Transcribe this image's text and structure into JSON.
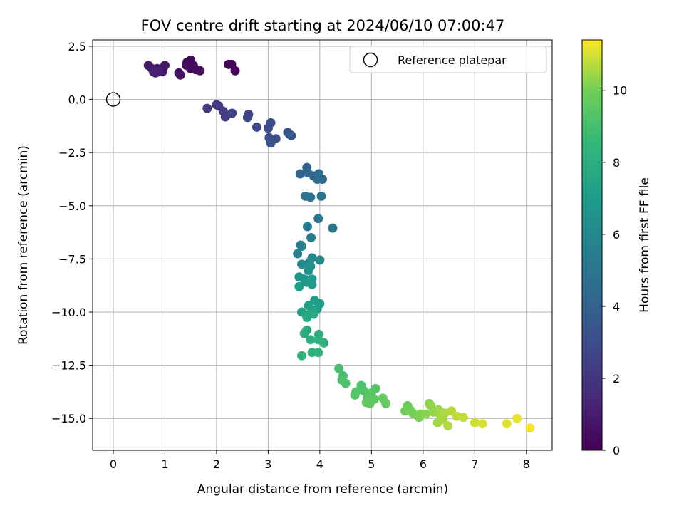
{
  "chart_data": {
    "type": "scatter",
    "title": "FOV centre drift starting at 2024/06/10 07:00:47",
    "xlabel": "Angular distance from reference (arcmin)",
    "ylabel": "Rotation from reference (arcmin)",
    "xlim": [
      -0.4,
      8.5
    ],
    "ylim": [
      -16.5,
      2.8
    ],
    "xticks": [
      0,
      1,
      2,
      3,
      4,
      5,
      6,
      7,
      8
    ],
    "yticks": [
      2.5,
      0.0,
      -2.5,
      -5.0,
      -7.5,
      -10.0,
      -12.5,
      -15.0
    ],
    "grid": true,
    "colormap": "viridis",
    "colorbar": {
      "label": "Hours from first FF file",
      "range": [
        0,
        11.4
      ],
      "ticks": [
        0,
        2,
        4,
        6,
        8,
        10
      ]
    },
    "legend": {
      "position": "top-right",
      "entries": [
        {
          "label": "Reference platepar",
          "marker": "open-circle"
        }
      ]
    },
    "reference_point": {
      "x": 0,
      "y": 0
    },
    "points": [
      {
        "x": 2.23,
        "y": 1.65,
        "t": 0.05
      },
      {
        "x": 2.29,
        "y": 1.65,
        "t": 0.1
      },
      {
        "x": 2.36,
        "y": 1.35,
        "t": 0.15
      },
      {
        "x": 1.5,
        "y": 1.85,
        "t": 0.25
      },
      {
        "x": 1.43,
        "y": 1.75,
        "t": 0.3
      },
      {
        "x": 1.55,
        "y": 1.6,
        "t": 0.35
      },
      {
        "x": 1.6,
        "y": 1.4,
        "t": 0.4
      },
      {
        "x": 1.5,
        "y": 1.45,
        "t": 0.45
      },
      {
        "x": 1.42,
        "y": 1.6,
        "t": 0.5
      },
      {
        "x": 1.68,
        "y": 1.35,
        "t": 0.55
      },
      {
        "x": 1.27,
        "y": 1.25,
        "t": 0.6
      },
      {
        "x": 1.3,
        "y": 1.15,
        "t": 0.65
      },
      {
        "x": 1.0,
        "y": 1.6,
        "t": 0.7
      },
      {
        "x": 0.97,
        "y": 1.5,
        "t": 0.75
      },
      {
        "x": 0.95,
        "y": 1.3,
        "t": 0.8
      },
      {
        "x": 0.85,
        "y": 1.45,
        "t": 0.85
      },
      {
        "x": 0.75,
        "y": 1.45,
        "t": 0.9
      },
      {
        "x": 0.68,
        "y": 1.6,
        "t": 0.95
      },
      {
        "x": 0.82,
        "y": 1.25,
        "t": 1.0
      },
      {
        "x": 0.88,
        "y": 1.3,
        "t": 1.1
      },
      {
        "x": 0.78,
        "y": 1.3,
        "t": 1.2
      },
      {
        "x": 1.82,
        "y": -0.42,
        "t": 2.0
      },
      {
        "x": 2.0,
        "y": -0.25,
        "t": 2.1
      },
      {
        "x": 2.04,
        "y": -0.3,
        "t": 2.2
      },
      {
        "x": 2.13,
        "y": -0.55,
        "t": 2.3
      },
      {
        "x": 2.17,
        "y": -0.82,
        "t": 2.4
      },
      {
        "x": 2.3,
        "y": -0.65,
        "t": 2.5
      },
      {
        "x": 2.62,
        "y": -0.7,
        "t": 2.6
      },
      {
        "x": 2.6,
        "y": -0.85,
        "t": 2.7
      },
      {
        "x": 2.78,
        "y": -1.3,
        "t": 2.8
      },
      {
        "x": 3.0,
        "y": -1.35,
        "t": 2.9
      },
      {
        "x": 3.05,
        "y": -1.1,
        "t": 3.0
      },
      {
        "x": 3.02,
        "y": -1.8,
        "t": 3.1
      },
      {
        "x": 3.15,
        "y": -1.85,
        "t": 3.2
      },
      {
        "x": 3.05,
        "y": -2.05,
        "t": 3.3
      },
      {
        "x": 3.38,
        "y": -1.55,
        "t": 3.4
      },
      {
        "x": 3.42,
        "y": -1.65,
        "t": 3.5
      },
      {
        "x": 3.45,
        "y": -1.7,
        "t": 3.55
      },
      {
        "x": 3.75,
        "y": -3.2,
        "t": 4.0
      },
      {
        "x": 3.62,
        "y": -3.5,
        "t": 4.1
      },
      {
        "x": 3.77,
        "y": -3.45,
        "t": 4.2
      },
      {
        "x": 3.88,
        "y": -3.6,
        "t": 4.3
      },
      {
        "x": 3.95,
        "y": -3.75,
        "t": 4.4
      },
      {
        "x": 4.05,
        "y": -3.75,
        "t": 4.5
      },
      {
        "x": 3.98,
        "y": -3.5,
        "t": 4.6
      },
      {
        "x": 3.72,
        "y": -4.55,
        "t": 4.7
      },
      {
        "x": 3.82,
        "y": -4.6,
        "t": 4.8
      },
      {
        "x": 4.03,
        "y": -4.55,
        "t": 4.9
      },
      {
        "x": 3.97,
        "y": -5.6,
        "t": 5.0
      },
      {
        "x": 4.25,
        "y": -6.05,
        "t": 5.1
      },
      {
        "x": 3.76,
        "y": -5.98,
        "t": 5.2
      },
      {
        "x": 3.83,
        "y": -6.5,
        "t": 5.3
      },
      {
        "x": 3.65,
        "y": -6.9,
        "t": 5.4
      },
      {
        "x": 3.63,
        "y": -6.85,
        "t": 5.5
      },
      {
        "x": 3.57,
        "y": -7.25,
        "t": 5.6
      },
      {
        "x": 3.85,
        "y": -7.45,
        "t": 6.0
      },
      {
        "x": 4.0,
        "y": -7.55,
        "t": 6.1
      },
      {
        "x": 3.65,
        "y": -7.75,
        "t": 6.2
      },
      {
        "x": 3.8,
        "y": -7.65,
        "t": 6.3
      },
      {
        "x": 3.78,
        "y": -8.05,
        "t": 6.4
      },
      {
        "x": 3.82,
        "y": -7.85,
        "t": 6.5
      },
      {
        "x": 3.6,
        "y": -8.35,
        "t": 6.6
      },
      {
        "x": 3.7,
        "y": -8.45,
        "t": 6.7
      },
      {
        "x": 3.75,
        "y": -8.6,
        "t": 6.8
      },
      {
        "x": 3.85,
        "y": -8.45,
        "t": 6.9
      },
      {
        "x": 3.85,
        "y": -8.7,
        "t": 7.0
      },
      {
        "x": 3.6,
        "y": -8.8,
        "t": 7.05
      },
      {
        "x": 3.9,
        "y": -9.45,
        "t": 7.1
      },
      {
        "x": 4.0,
        "y": -9.6,
        "t": 7.15
      },
      {
        "x": 3.95,
        "y": -9.85,
        "t": 7.2
      },
      {
        "x": 3.78,
        "y": -9.7,
        "t": 7.3
      },
      {
        "x": 3.85,
        "y": -9.9,
        "t": 7.4
      },
      {
        "x": 3.65,
        "y": -10.0,
        "t": 7.5
      },
      {
        "x": 3.8,
        "y": -10.1,
        "t": 7.6
      },
      {
        "x": 3.75,
        "y": -10.25,
        "t": 7.7
      },
      {
        "x": 3.88,
        "y": -10.1,
        "t": 7.8
      },
      {
        "x": 3.75,
        "y": -10.85,
        "t": 7.9
      },
      {
        "x": 3.7,
        "y": -11.0,
        "t": 8.0
      },
      {
        "x": 3.98,
        "y": -11.05,
        "t": 8.05
      },
      {
        "x": 3.82,
        "y": -11.3,
        "t": 8.1
      },
      {
        "x": 3.97,
        "y": -11.3,
        "t": 8.15
      },
      {
        "x": 4.08,
        "y": -11.45,
        "t": 8.2
      },
      {
        "x": 3.85,
        "y": -11.9,
        "t": 8.25
      },
      {
        "x": 3.97,
        "y": -11.9,
        "t": 8.3
      },
      {
        "x": 3.65,
        "y": -12.05,
        "t": 8.35
      },
      {
        "x": 4.37,
        "y": -12.65,
        "t": 9.0
      },
      {
        "x": 4.45,
        "y": -13.0,
        "t": 9.05
      },
      {
        "x": 4.43,
        "y": -13.2,
        "t": 9.1
      },
      {
        "x": 4.5,
        "y": -13.35,
        "t": 9.15
      },
      {
        "x": 4.8,
        "y": -13.45,
        "t": 9.2
      },
      {
        "x": 4.85,
        "y": -13.7,
        "t": 9.25
      },
      {
        "x": 4.7,
        "y": -13.75,
        "t": 9.3
      },
      {
        "x": 4.68,
        "y": -13.9,
        "t": 9.35
      },
      {
        "x": 5.08,
        "y": -13.6,
        "t": 9.4
      },
      {
        "x": 5.0,
        "y": -13.8,
        "t": 9.45
      },
      {
        "x": 4.92,
        "y": -14.05,
        "t": 9.5
      },
      {
        "x": 5.05,
        "y": -14.1,
        "t": 9.55
      },
      {
        "x": 4.97,
        "y": -14.3,
        "t": 9.6
      },
      {
        "x": 4.9,
        "y": -14.25,
        "t": 9.65
      },
      {
        "x": 5.22,
        "y": -14.05,
        "t": 9.7
      },
      {
        "x": 5.28,
        "y": -14.3,
        "t": 9.75
      },
      {
        "x": 5.7,
        "y": -14.4,
        "t": 9.9
      },
      {
        "x": 5.75,
        "y": -14.6,
        "t": 9.95
      },
      {
        "x": 5.65,
        "y": -14.65,
        "t": 10.0
      },
      {
        "x": 5.8,
        "y": -14.75,
        "t": 10.05
      },
      {
        "x": 5.92,
        "y": -14.95,
        "t": 10.1
      },
      {
        "x": 5.95,
        "y": -14.8,
        "t": 10.15
      },
      {
        "x": 6.05,
        "y": -14.8,
        "t": 10.2
      },
      {
        "x": 6.12,
        "y": -14.3,
        "t": 10.25
      },
      {
        "x": 6.15,
        "y": -14.4,
        "t": 10.3
      },
      {
        "x": 6.2,
        "y": -14.7,
        "t": 10.35
      },
      {
        "x": 6.3,
        "y": -14.6,
        "t": 10.4
      },
      {
        "x": 6.32,
        "y": -14.8,
        "t": 10.45
      },
      {
        "x": 6.28,
        "y": -15.2,
        "t": 10.5
      },
      {
        "x": 6.38,
        "y": -15.05,
        "t": 10.55
      },
      {
        "x": 6.42,
        "y": -14.75,
        "t": 10.6
      },
      {
        "x": 6.48,
        "y": -15.35,
        "t": 10.65
      },
      {
        "x": 6.55,
        "y": -14.65,
        "t": 10.7
      },
      {
        "x": 6.65,
        "y": -14.9,
        "t": 10.75
      },
      {
        "x": 6.78,
        "y": -14.95,
        "t": 10.8
      },
      {
        "x": 7.0,
        "y": -15.2,
        "t": 10.9
      },
      {
        "x": 7.15,
        "y": -15.25,
        "t": 11.0
      },
      {
        "x": 7.62,
        "y": -15.25,
        "t": 11.1
      },
      {
        "x": 7.82,
        "y": -15.0,
        "t": 11.2
      },
      {
        "x": 8.07,
        "y": -15.45,
        "t": 11.35
      }
    ]
  }
}
